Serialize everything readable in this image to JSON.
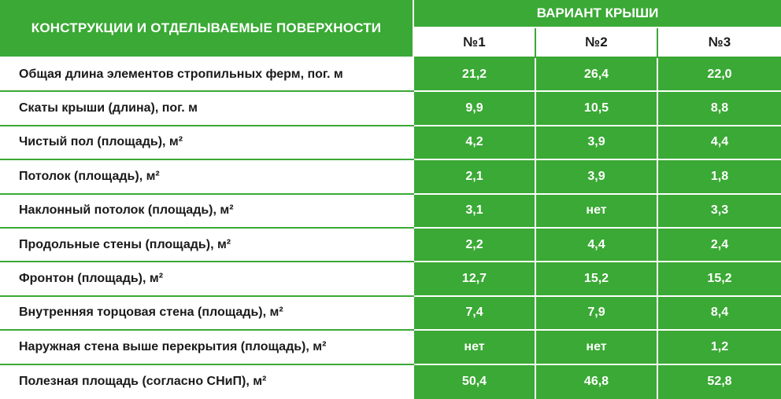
{
  "table": {
    "header_main": "КОНСТРУКЦИИ И ОТДЕЛЫВАЕМЫЕ ПОВЕРХНОСТИ",
    "header_variant": "ВАРИАНТ КРЫШИ",
    "columns": [
      "№1",
      "№2",
      "№3"
    ],
    "rows": [
      {
        "label": "Общая длина элементов стропильных ферм, пог. м",
        "values": [
          "21,2",
          "26,4",
          "22,0"
        ]
      },
      {
        "label": "Скаты крыши (длина), пог. м",
        "values": [
          "9,9",
          "10,5",
          "8,8"
        ]
      },
      {
        "label": "Чистый пол (площадь), м²",
        "values": [
          "4,2",
          "3,9",
          "4,4"
        ]
      },
      {
        "label": "Потолок (площадь), м²",
        "values": [
          "2,1",
          "3,9",
          "1,8"
        ]
      },
      {
        "label": "Наклонный потолок (площадь), м²",
        "values": [
          "3,1",
          "нет",
          "3,3"
        ]
      },
      {
        "label": "Продольные стены (площадь), м²",
        "values": [
          "2,2",
          "4,4",
          "2,4"
        ]
      },
      {
        "label": "Фронтон (площадь), м²",
        "values": [
          "12,7",
          "15,2",
          "15,2"
        ]
      },
      {
        "label": "Внутренняя торцовая стена (площадь), м²",
        "values": [
          "7,4",
          "7,9",
          "8,4"
        ]
      },
      {
        "label": "Наружная стена выше перекрытия (площадь), м²",
        "values": [
          "нет",
          "нет",
          "1,2"
        ]
      },
      {
        "label": "Полезная площадь (согласно СНиП), м²",
        "values": [
          "50,4",
          "46,8",
          "52,8"
        ]
      }
    ],
    "colors": {
      "green": "#3aa935",
      "white": "#ffffff",
      "text": "#1a1a1a"
    }
  }
}
